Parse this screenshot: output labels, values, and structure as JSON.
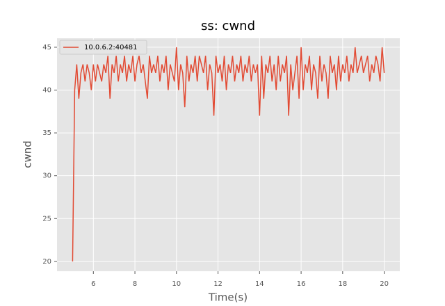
{
  "chart_data": {
    "type": "line",
    "title": "ss: cwnd",
    "xlabel": "Time(s)",
    "ylabel": "cwnd",
    "x": [
      5.0,
      5.1,
      5.2,
      5.3,
      5.4,
      5.5,
      5.6,
      5.7,
      5.8,
      5.9,
      6.0,
      6.1,
      6.2,
      6.3,
      6.4,
      6.5,
      6.6,
      6.7,
      6.8,
      6.9,
      7.0,
      7.1,
      7.2,
      7.3,
      7.4,
      7.5,
      7.6,
      7.7,
      7.8,
      7.9,
      8.0,
      8.1,
      8.2,
      8.3,
      8.4,
      8.5,
      8.6,
      8.7,
      8.8,
      8.9,
      9.0,
      9.1,
      9.2,
      9.3,
      9.4,
      9.5,
      9.6,
      9.7,
      9.8,
      9.9,
      10.0,
      10.1,
      10.2,
      10.3,
      10.4,
      10.5,
      10.6,
      10.7,
      10.8,
      10.9,
      11.0,
      11.1,
      11.2,
      11.3,
      11.4,
      11.5,
      11.6,
      11.7,
      11.8,
      11.9,
      12.0,
      12.1,
      12.2,
      12.3,
      12.4,
      12.5,
      12.6,
      12.7,
      12.8,
      12.9,
      13.0,
      13.1,
      13.2,
      13.3,
      13.4,
      13.5,
      13.6,
      13.7,
      13.8,
      13.9,
      14.0,
      14.1,
      14.2,
      14.3,
      14.4,
      14.5,
      14.6,
      14.7,
      14.8,
      14.9,
      15.0,
      15.1,
      15.2,
      15.3,
      15.4,
      15.5,
      15.6,
      15.7,
      15.8,
      15.9,
      16.0,
      16.1,
      16.2,
      16.3,
      16.4,
      16.5,
      16.6,
      16.7,
      16.8,
      16.9,
      17.0,
      17.1,
      17.2,
      17.3,
      17.4,
      17.5,
      17.6,
      17.7,
      17.8,
      17.9,
      18.0,
      18.1,
      18.2,
      18.3,
      18.4,
      18.5,
      18.6,
      18.7,
      18.8,
      18.9,
      19.0,
      19.1,
      19.2,
      19.3,
      19.4,
      19.5,
      19.6,
      19.7,
      19.8,
      19.9,
      20.0
    ],
    "series": [
      {
        "name": "10.0.6.2:40481",
        "color": "#E24A33",
        "values": [
          20,
          40,
          43,
          39,
          42,
          43,
          41,
          43,
          42,
          40,
          43,
          41,
          43,
          42,
          41,
          43,
          42,
          44,
          39,
          43,
          42,
          44,
          41,
          43,
          42,
          44,
          41,
          43,
          42,
          44,
          41,
          43,
          44,
          42,
          43,
          41,
          39,
          44,
          42,
          43,
          42,
          44,
          41,
          43,
          42,
          44,
          40,
          43,
          42,
          41,
          45,
          40,
          43,
          42,
          38,
          44,
          41,
          43,
          42,
          44,
          41,
          44,
          43,
          42,
          44,
          40,
          43,
          42,
          37,
          44,
          42,
          43,
          41,
          44,
          40,
          43,
          42,
          44,
          41,
          43,
          42,
          44,
          41,
          43,
          42,
          44,
          41,
          43,
          42,
          43,
          37,
          44,
          39,
          43,
          42,
          44,
          41,
          43,
          40,
          44,
          41,
          43,
          42,
          44,
          37,
          43,
          40,
          42,
          44,
          39,
          45,
          40,
          43,
          42,
          44,
          40,
          43,
          42,
          39,
          44,
          41,
          43,
          42,
          39,
          44,
          42,
          43,
          40,
          44,
          41,
          43,
          42,
          44,
          41,
          43,
          42,
          45,
          42,
          43,
          44,
          42,
          43,
          44,
          41,
          43,
          42,
          44,
          43,
          41,
          45,
          42
        ]
      }
    ],
    "xlim": [
      4.25,
      20.75
    ],
    "ylim": [
      18.85,
      46.05
    ],
    "xticks": [
      6,
      8,
      10,
      12,
      14,
      16,
      18,
      20
    ],
    "yticks": [
      20,
      25,
      30,
      35,
      40,
      45
    ],
    "grid": true,
    "legend": "upper left"
  }
}
